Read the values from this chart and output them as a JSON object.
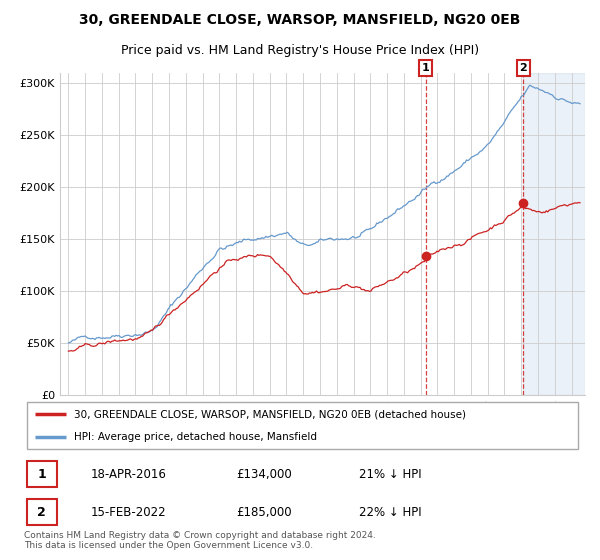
{
  "title": "30, GREENDALE CLOSE, WARSOP, MANSFIELD, NG20 0EB",
  "subtitle": "Price paid vs. HM Land Registry's House Price Index (HPI)",
  "hpi_label": "HPI: Average price, detached house, Mansfield",
  "price_label": "30, GREENDALE CLOSE, WARSOP, MANSFIELD, NG20 0EB (detached house)",
  "footer": "Contains HM Land Registry data © Crown copyright and database right 2024.\nThis data is licensed under the Open Government Licence v3.0.",
  "sale1": {
    "date": "18-APR-2016",
    "price": 134000,
    "pct": "21%",
    "direction": "↓",
    "label": "1"
  },
  "sale2": {
    "date": "15-FEB-2022",
    "price": 185000,
    "pct": "22%",
    "direction": "↓",
    "label": "2"
  },
  "sale1_x": 2016.3,
  "sale2_x": 2022.12,
  "sale1_y": 134000,
  "sale2_y": 185000,
  "hpi_color": "#6699cc",
  "price_color": "#cc2222",
  "marker_color": "#cc2222",
  "plot_bg": "#ffffff",
  "grid_color": "#cccccc",
  "ylim": [
    0,
    310000
  ],
  "xlim": [
    1994.5,
    2025.8
  ],
  "yticks": [
    0,
    50000,
    100000,
    150000,
    200000,
    250000,
    300000
  ],
  "ytick_labels": [
    "£0",
    "£50K",
    "£100K",
    "£150K",
    "£200K",
    "£250K",
    "£300K"
  ],
  "xticks": [
    1995,
    1996,
    1997,
    1998,
    1999,
    2000,
    2001,
    2002,
    2003,
    2004,
    2005,
    2006,
    2007,
    2008,
    2009,
    2010,
    2011,
    2012,
    2013,
    2014,
    2015,
    2016,
    2017,
    2018,
    2019,
    2020,
    2021,
    2022,
    2023,
    2024,
    2025
  ],
  "title_fontsize": 10,
  "subtitle_fontsize": 9,
  "tick_fontsize": 8
}
